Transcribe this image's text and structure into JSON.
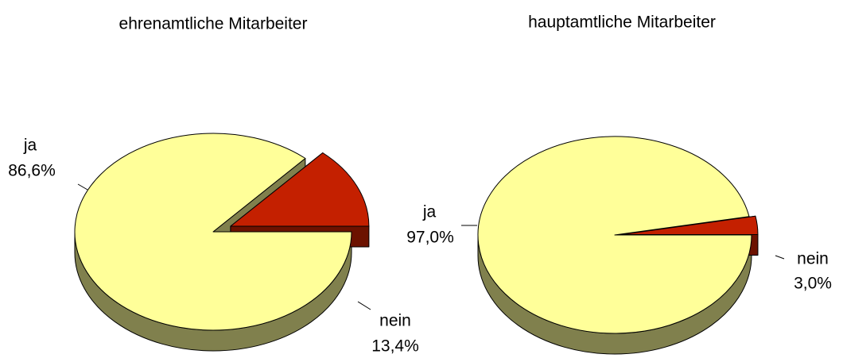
{
  "chart_data": [
    {
      "type": "pie",
      "title": "ehrenamtliche Mitarbeiter",
      "categories": [
        "ja",
        "nein"
      ],
      "values": [
        86.6,
        13.4
      ],
      "value_labels": [
        "86,6%",
        "13,4%"
      ],
      "colors": [
        "#ffff99",
        "#c42000"
      ]
    },
    {
      "type": "pie",
      "title": "hauptamtliche Mitarbeiter",
      "categories": [
        "ja",
        "nein"
      ],
      "values": [
        97.0,
        3.0
      ],
      "value_labels": [
        "97,0%",
        "3,0%"
      ],
      "colors": [
        "#ffff99",
        "#c42000"
      ]
    }
  ]
}
